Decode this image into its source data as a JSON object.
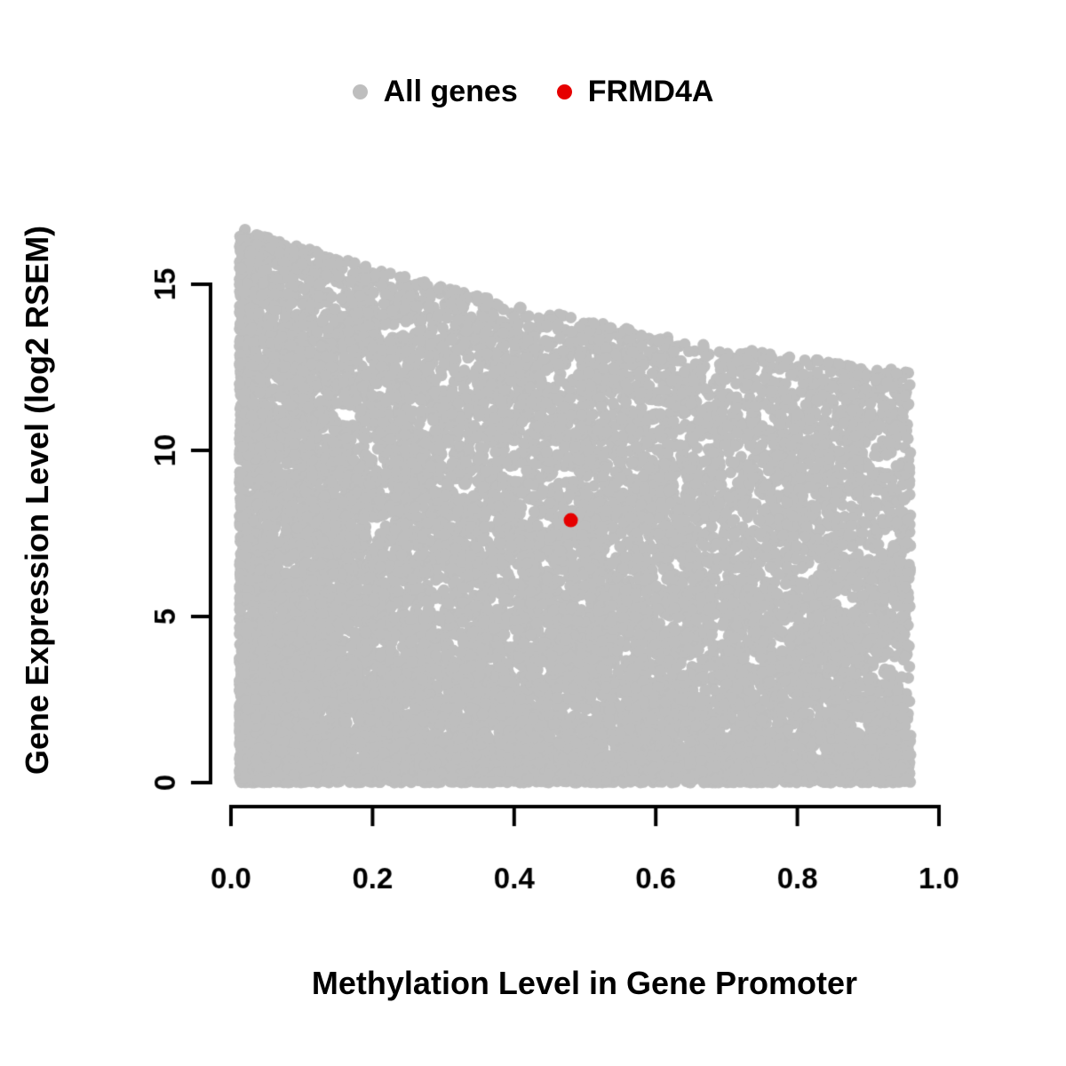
{
  "chart_data": {
    "type": "scatter",
    "title": "",
    "xlabel": "Methylation Level in Gene Promoter",
    "ylabel": "Gene Expression Level (log2 RSEM)",
    "xlim": [
      0.0,
      1.0
    ],
    "ylim": [
      0,
      15
    ],
    "x_ticks": [
      0.0,
      0.2,
      0.4,
      0.6,
      0.8,
      1.0
    ],
    "x_tick_labels": [
      "0.0",
      "0.2",
      "0.4",
      "0.6",
      "0.8",
      "1.0"
    ],
    "y_ticks": [
      0,
      5,
      10,
      15
    ],
    "y_tick_labels": [
      "0",
      "5",
      "10",
      "15"
    ],
    "grid": false,
    "legend_position": "top-center",
    "legend": [
      {
        "label": "All genes",
        "color": "#bebebe"
      },
      {
        "label": "FRMD4A",
        "color": "#e60000"
      }
    ],
    "series": [
      {
        "name": "All genes",
        "color": "#bebebe",
        "point_radius_px": 6.5,
        "description": "Dense cloud of ~14000 genes; methylation 0.01-0.96; expression 0 to an upper envelope falling from ~16.7 at methylation 0 to ~12.3 at methylation 0.96; density highest at low methylation and low expression",
        "generator": {
          "seed": 42,
          "n_points": 14000,
          "x_min": 0.012,
          "x_max": 0.96,
          "x_power": 1.35,
          "env_a": 16.8,
          "env_b": -7.0,
          "env_c": 2.5,
          "y_power": 1.4
        }
      },
      {
        "name": "FRMD4A",
        "color": "#e60000",
        "point_radius_px": 8,
        "points": [
          [
            0.48,
            7.9
          ]
        ]
      }
    ]
  }
}
